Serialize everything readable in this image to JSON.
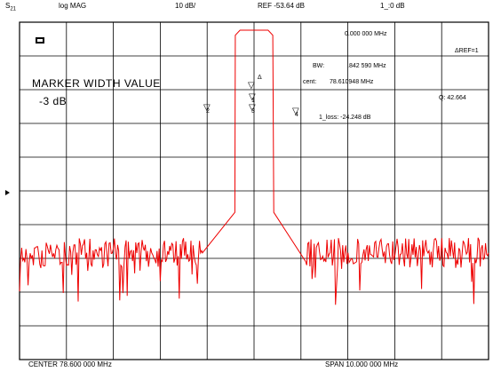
{
  "header": {
    "param_main": "S",
    "param_sub": "21",
    "format": "log MAG",
    "scale": "10 dB/",
    "ref_level": "REF -53.64 dB",
    "extra": "1_:0    dB"
  },
  "marker_readout": {
    "frequency": "0.000 000 MHz",
    "ref_label": "ΔREF=1",
    "bw_label": "BW:",
    "bw_value": ".842 590 MHz",
    "cent_label": "cent:",
    "cent_value": "78.610948 MHz",
    "q_value": "Q: 42.664",
    "loss_value": "1_loss: -24.248 dB"
  },
  "overlay": {
    "title": "MARKER WIDTH VALUE",
    "value": "-3 dB",
    "status_icon": "marker-status-icon"
  },
  "markers": [
    {
      "id": "marker-delta",
      "glyph": "▽",
      "label": "Δ"
    },
    {
      "id": "marker-1",
      "glyph": "▽",
      "label": "1"
    },
    {
      "id": "marker-2",
      "glyph": "▽",
      "label": "2"
    },
    {
      "id": "marker-3",
      "glyph": "▽",
      "label": "3"
    },
    {
      "id": "marker-4",
      "glyph": "▽",
      "label": "4"
    }
  ],
  "footer": {
    "center": "CENTER  78.600 000 MHz",
    "span": "SPAN  10.000 000 MHz"
  },
  "colors": {
    "trace": "#ee0000",
    "grid": "#000000",
    "background": "#ffffff"
  },
  "chart_data": {
    "type": "line",
    "title": "",
    "xlabel": "",
    "ylabel": "",
    "x_center_mhz": 78.6,
    "x_span_mhz": 10.0,
    "xlim": [
      73.6,
      83.6
    ],
    "ylim": [
      -153.64,
      -53.64
    ],
    "grid": true,
    "divisions": {
      "x": 10,
      "y": 10
    },
    "series": [
      {
        "x": [
          73.6,
          76.8,
          77.5,
          78.19,
          78.2,
          78.3,
          78.6,
          78.9,
          79.0,
          79.02,
          79.7,
          80.4,
          83.6
        ],
        "y": [
          -122.0,
          -122.0,
          -122.0,
          -110.0,
          -57.5,
          -56.0,
          -56.0,
          -56.0,
          -57.5,
          -110.0,
          -122.0,
          -122.0,
          -122.0
        ]
      }
    ]
  }
}
